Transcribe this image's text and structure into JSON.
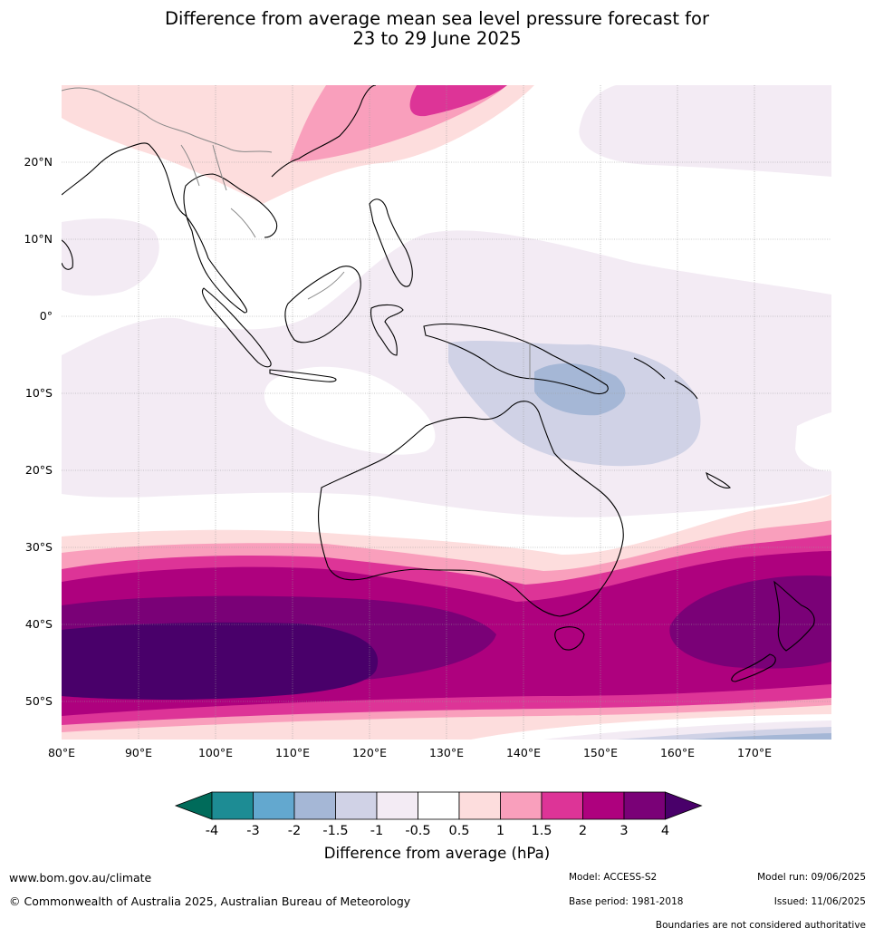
{
  "title": {
    "line1": "Difference from average mean sea level pressure forecast for",
    "line2": "23 to 29 June 2025"
  },
  "map": {
    "lat_labels": [
      "20°N",
      "10°N",
      "0°",
      "10°S",
      "20°S",
      "30°S",
      "40°S",
      "50°S"
    ],
    "lon_labels": [
      "80°E",
      "90°E",
      "100°E",
      "110°E",
      "120°E",
      "130°E",
      "140°E",
      "150°E",
      "160°E",
      "170°E"
    ]
  },
  "legend": {
    "ticks": [
      "-4",
      "-3",
      "-2",
      "-1.5",
      "-1",
      "-0.5",
      "0.5",
      "1",
      "1.5",
      "2",
      "3",
      "4"
    ],
    "colors": [
      "#1d8c94",
      "#63a8cf",
      "#a5b7d6",
      "#d0d2e6",
      "#f3ebf4",
      "#ffffff",
      "#fddddd",
      "#f99fbc",
      "#dd3497",
      "#ae017e",
      "#7a0177"
    ],
    "under_color": "#006b5a",
    "over_color": "#49006a",
    "label": "Difference from average (hPa)"
  },
  "footer": {
    "website": "www.bom.gov.au/climate",
    "copyright": "© Commonwealth of Australia 2025, Australian Bureau of Meteorology",
    "model": "Model: ACCESS-S2",
    "base_period": "Base period: 1981-2018",
    "model_run": "Model run: 09/06/2025",
    "issued": "Issued: 11/06/2025",
    "boundaries": "Boundaries are not considered authoritative"
  }
}
